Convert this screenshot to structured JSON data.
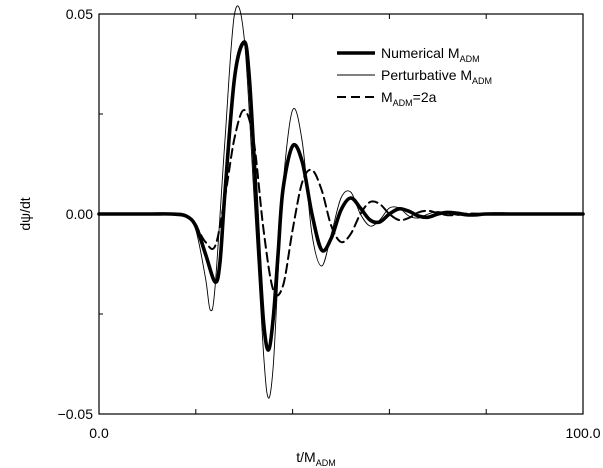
{
  "chart_data": {
    "type": "line",
    "title": "",
    "xlabel": {
      "main": "t/M",
      "sub": "ADM"
    },
    "ylabel": "dψ/dt",
    "xlim": [
      0.0,
      100.0
    ],
    "ylim": [
      -0.05,
      0.05
    ],
    "x_ticks": [
      0.0,
      100.0
    ],
    "x_tick_labels": [
      "0.0",
      "100.0"
    ],
    "y_ticks": [
      -0.05,
      0.0,
      0.05
    ],
    "y_tick_labels": [
      "−0.05",
      "0.00",
      "0.05"
    ],
    "grid": false,
    "legend_position": "top-right",
    "legend": [
      {
        "series": "numerical",
        "text_main": "Numerical M",
        "text_sub": "ADM",
        "text_tail": ""
      },
      {
        "series": "perturbative",
        "text_main": "Perturbative M",
        "text_sub": "ADM",
        "text_tail": ""
      },
      {
        "series": "twoa",
        "text_main": "M",
        "text_sub": "ADM",
        "text_tail": "=2a"
      }
    ],
    "series": [
      {
        "name": "Numerical M_ADM",
        "id": "numerical",
        "style": "thick-solid",
        "color": "#000000",
        "x": [
          0,
          10,
          15,
          18,
          20,
          22,
          24,
          25,
          26,
          28,
          30,
          31,
          32,
          33,
          34,
          35,
          36,
          37,
          38,
          40,
          42,
          44,
          46,
          48,
          50,
          52,
          54,
          56,
          58,
          60,
          62,
          64,
          66,
          68,
          70,
          72,
          74,
          76,
          78,
          80,
          85,
          90,
          100
        ],
        "y": [
          0,
          0,
          0,
          -0.0005,
          -0.003,
          -0.01,
          -0.017,
          -0.012,
          0.005,
          0.034,
          0.043,
          0.035,
          0.015,
          -0.008,
          -0.027,
          -0.034,
          -0.026,
          -0.01,
          0.006,
          0.017,
          0.013,
          0.0,
          -0.009,
          -0.006,
          0.001,
          0.004,
          0.0015,
          -0.0015,
          -0.002,
          0.0,
          0.0013,
          0.0007,
          -0.0005,
          -0.0008,
          0.0,
          0.0004,
          0.0002,
          -0.0002,
          -0.0002,
          0.0,
          0.0,
          0.0,
          0.0
        ]
      },
      {
        "name": "Perturbative M_ADM",
        "id": "perturbative",
        "style": "thin-solid",
        "color": "#000000",
        "x": [
          0,
          10,
          15,
          18,
          20,
          22,
          23,
          24,
          26,
          28,
          30,
          32,
          34,
          35,
          36,
          37,
          38,
          40,
          42,
          44,
          46,
          48,
          50,
          52,
          54,
          56,
          58,
          60,
          62,
          64,
          66,
          68,
          70,
          72,
          74,
          76,
          78,
          80,
          85,
          90,
          100
        ],
        "y": [
          0,
          0,
          0,
          -0.0005,
          -0.004,
          -0.016,
          -0.024,
          -0.018,
          0.018,
          0.05,
          0.044,
          0.005,
          -0.035,
          -0.046,
          -0.038,
          -0.015,
          0.007,
          0.026,
          0.018,
          -0.005,
          -0.013,
          -0.005,
          0.004,
          0.0055,
          0.0,
          -0.003,
          -0.0015,
          0.0015,
          0.0015,
          -0.0005,
          -0.001,
          0.0,
          0.0006,
          0.0002,
          -0.0003,
          -0.0002,
          0.0001,
          0.0,
          0.0,
          0.0,
          0.0
        ]
      },
      {
        "name": "M_ADM=2a",
        "id": "twoa",
        "style": "dashed",
        "color": "#000000",
        "x": [
          0,
          10,
          15,
          18,
          20,
          22,
          24,
          26,
          28,
          30,
          32,
          34,
          36,
          38,
          40,
          42,
          44,
          46,
          48,
          50,
          52,
          54,
          56,
          58,
          60,
          62,
          64,
          66,
          68,
          70,
          72,
          74,
          76,
          78,
          80,
          85,
          90,
          100
        ],
        "y": [
          0,
          0,
          0,
          -0.0005,
          -0.003,
          -0.007,
          -0.008,
          0.004,
          0.019,
          0.026,
          0.018,
          -0.004,
          -0.019,
          -0.018,
          -0.004,
          0.008,
          0.011,
          0.006,
          -0.003,
          -0.007,
          -0.005,
          0.0,
          0.003,
          0.0025,
          0.0,
          -0.0015,
          -0.001,
          0.0004,
          0.0008,
          0.0002,
          -0.0003,
          -0.0002,
          0.0001,
          0.0001,
          0.0,
          0.0,
          0.0,
          0.0
        ]
      }
    ]
  }
}
